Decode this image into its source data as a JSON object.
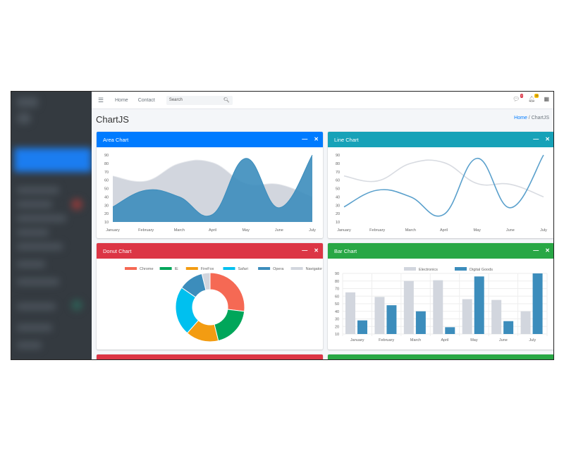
{
  "nav": {
    "home": "Home",
    "contact": "Contact",
    "search_placeholder": "Search",
    "messages_badge": "3",
    "notifications_badge": "15"
  },
  "page": {
    "title": "ChartJS",
    "breadcrumb": [
      "Home",
      "ChartJS"
    ]
  },
  "colors": {
    "area": "#007bff",
    "line": "#17a2b8",
    "donut": "#dc3545",
    "bar": "#28a745"
  },
  "cards": {
    "area": "Area Chart",
    "line": "Line Chart",
    "donut": "Donut Chart",
    "bar": "Bar Chart"
  },
  "chart_data": [
    {
      "type": "area",
      "title": "Area Chart",
      "categories": [
        "January",
        "February",
        "March",
        "April",
        "May",
        "June",
        "July"
      ],
      "ylim": [
        10,
        90
      ],
      "yticks": [
        10,
        20,
        30,
        40,
        50,
        60,
        70,
        80,
        90
      ],
      "series": [
        {
          "values": [
            65,
            59,
            80,
            81,
            56,
            55,
            40
          ],
          "color": "#d2d6de"
        },
        {
          "values": [
            28,
            48,
            40,
            19,
            86,
            27,
            90
          ],
          "color": "#3c8dbc"
        }
      ]
    },
    {
      "type": "line",
      "title": "Line Chart",
      "categories": [
        "January",
        "February",
        "March",
        "April",
        "May",
        "June",
        "July"
      ],
      "ylim": [
        10,
        90
      ],
      "yticks": [
        10,
        20,
        30,
        40,
        50,
        60,
        70,
        80,
        90
      ],
      "series": [
        {
          "values": [
            65,
            59,
            80,
            81,
            56,
            55,
            40
          ],
          "color": "#d2d6de"
        },
        {
          "values": [
            28,
            48,
            40,
            19,
            86,
            27,
            90
          ],
          "color": "#3c8dbc"
        }
      ]
    },
    {
      "type": "pie",
      "title": "Donut Chart",
      "labels": [
        "Chrome",
        "IE",
        "FireFox",
        "Safari",
        "Opera",
        "Navigator"
      ],
      "values": [
        700,
        500,
        400,
        600,
        300,
        100
      ],
      "colors": [
        "#f56954",
        "#00a65a",
        "#f39c12",
        "#00c0ef",
        "#3c8dbc",
        "#d2d6de"
      ],
      "legend": "top"
    },
    {
      "type": "bar",
      "title": "Bar Chart",
      "categories": [
        "January",
        "February",
        "March",
        "April",
        "May",
        "June",
        "July"
      ],
      "ylim": [
        10,
        90
      ],
      "yticks": [
        10,
        20,
        30,
        40,
        50,
        60,
        70,
        80,
        90
      ],
      "grid": true,
      "legend": "top",
      "series": [
        {
          "name": "Electronics",
          "values": [
            65,
            59,
            80,
            81,
            56,
            55,
            40
          ],
          "color": "#d2d6de"
        },
        {
          "name": "Digital Goods",
          "values": [
            28,
            48,
            40,
            19,
            86,
            27,
            90
          ],
          "color": "#3c8dbc"
        }
      ]
    }
  ]
}
